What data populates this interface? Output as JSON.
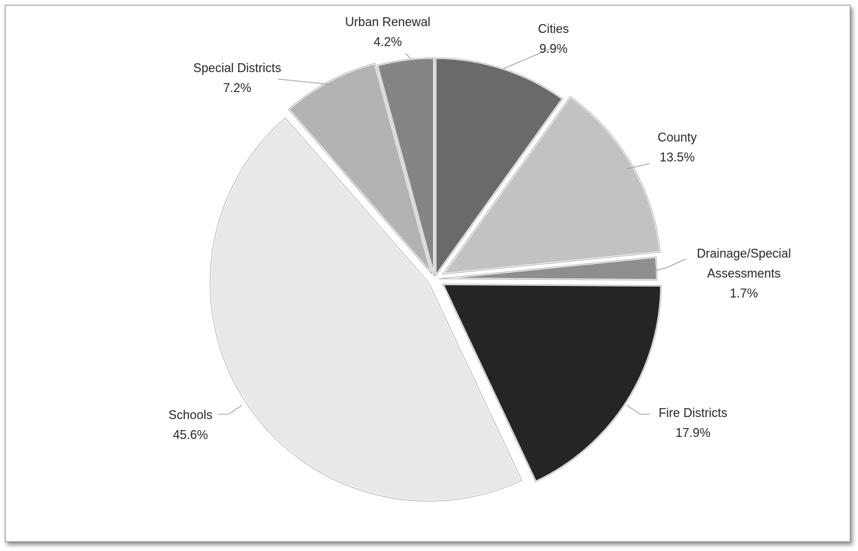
{
  "chart_data": {
    "type": "pie",
    "title": "",
    "slices": [
      {
        "label": "Cities",
        "value": 9.9,
        "display": "9.9%",
        "color": "#6a6a6a"
      },
      {
        "label": "County",
        "value": 13.5,
        "display": "13.5%",
        "color": "#c2c2c2"
      },
      {
        "label": "Drainage/Special Assessments",
        "label_lines": [
          "Drainage/Special",
          "Assessments"
        ],
        "value": 1.7,
        "display": "1.7%",
        "color": "#8e8e8e"
      },
      {
        "label": "Fire Districts",
        "value": 17.9,
        "display": "17.9%",
        "color": "#252525"
      },
      {
        "label": "Schools",
        "value": 45.6,
        "display": "45.6%",
        "color": "#e8e8e8"
      },
      {
        "label": "Special Districts",
        "value": 7.2,
        "display": "7.2%",
        "color": "#b3b3b3"
      },
      {
        "label": "Urban Renewal",
        "value": 4.2,
        "display": "4.2%",
        "color": "#858585"
      }
    ],
    "legend": "none",
    "data_labels": "outside with leader lines"
  }
}
